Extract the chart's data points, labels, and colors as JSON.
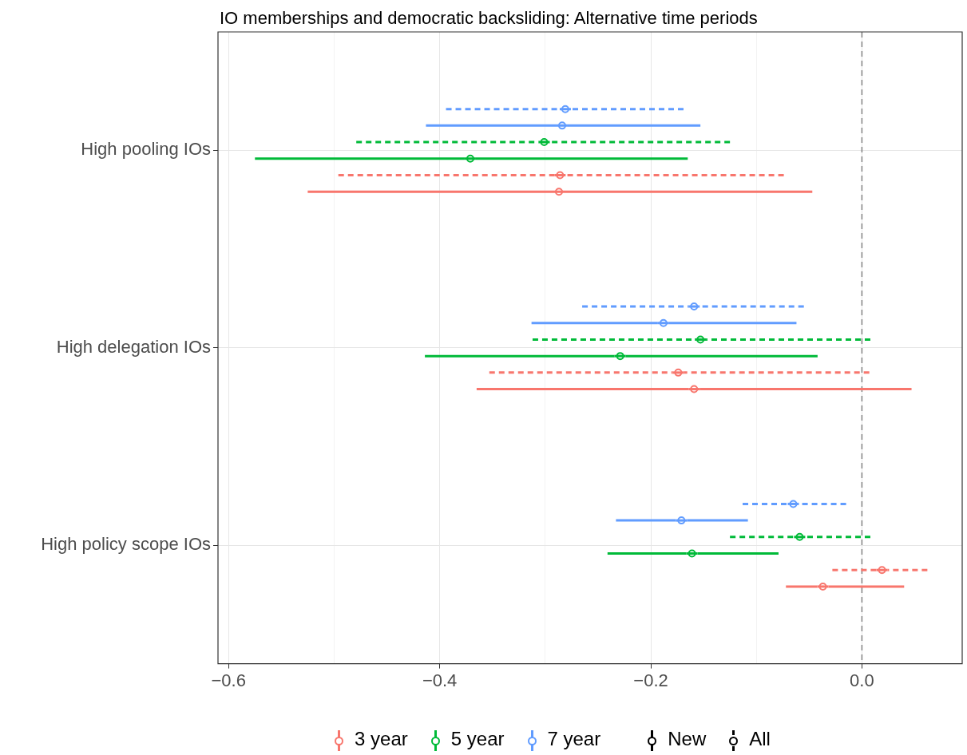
{
  "chart_data": {
    "type": "scatter",
    "orientation": "horizontal",
    "title": "IO memberships and democratic backsliding: Alternative time periods",
    "categories": [
      "High pooling IOs",
      "High delegation IOs",
      "High policy scope IOs"
    ],
    "xlim": [
      -0.61,
      0.095
    ],
    "xticks": [
      {
        "value": -0.6,
        "label": "−0.6"
      },
      {
        "value": -0.5,
        "label": null
      },
      {
        "value": -0.4,
        "label": "−0.4"
      },
      {
        "value": -0.3,
        "label": null
      },
      {
        "value": -0.2,
        "label": "−0.2"
      },
      {
        "value": -0.1,
        "label": null
      },
      {
        "value": 0,
        "label": "0.0"
      }
    ],
    "grid": true,
    "marker": "circle",
    "legend": "bottom",
    "annotations": [
      "New",
      "All"
    ],
    "ref_lines": [
      {
        "axis": "x",
        "value": 0,
        "color": "#808080",
        "line_style": "dashed"
      }
    ],
    "series": [
      {
        "name": "3 year",
        "color": "#f8766d",
        "line_style": "solid",
        "values": [
          -0.287,
          -0.159,
          -0.037
        ],
        "errors": [
          [
            -0.525,
            -0.047
          ],
          [
            -0.365,
            0.047
          ],
          [
            -0.072,
            0.04
          ]
        ]
      },
      {
        "color": "#f8766d",
        "line_style": "dashed",
        "values": [
          -0.286,
          -0.174,
          0.019
        ],
        "errors": [
          [
            -0.496,
            -0.074
          ],
          [
            -0.353,
            0.007
          ],
          [
            -0.028,
            0.062
          ]
        ]
      },
      {
        "name": "5 year",
        "color": "#00ba38",
        "line_style": "solid",
        "values": [
          -0.371,
          -0.229,
          -0.161
        ],
        "errors": [
          [
            -0.575,
            -0.165
          ],
          [
            -0.414,
            -0.042
          ],
          [
            -0.241,
            -0.079
          ]
        ]
      },
      {
        "color": "#00ba38",
        "line_style": "dashed",
        "values": [
          -0.301,
          -0.153,
          -0.059
        ],
        "errors": [
          [
            -0.479,
            -0.125
          ],
          [
            -0.312,
            0.008
          ],
          [
            -0.125,
            0.008
          ]
        ]
      },
      {
        "name": "7 year",
        "color": "#619cff",
        "line_style": "solid",
        "values": [
          -0.284,
          -0.188,
          -0.171
        ],
        "errors": [
          [
            -0.413,
            -0.153
          ],
          [
            -0.313,
            -0.062
          ],
          [
            -0.233,
            -0.108
          ]
        ]
      },
      {
        "color": "#619cff",
        "line_style": "dashed",
        "values": [
          -0.281,
          -0.159,
          -0.065
        ],
        "errors": [
          [
            -0.394,
            -0.169
          ],
          [
            -0.265,
            -0.055
          ],
          [
            -0.113,
            -0.015
          ]
        ]
      }
    ]
  }
}
